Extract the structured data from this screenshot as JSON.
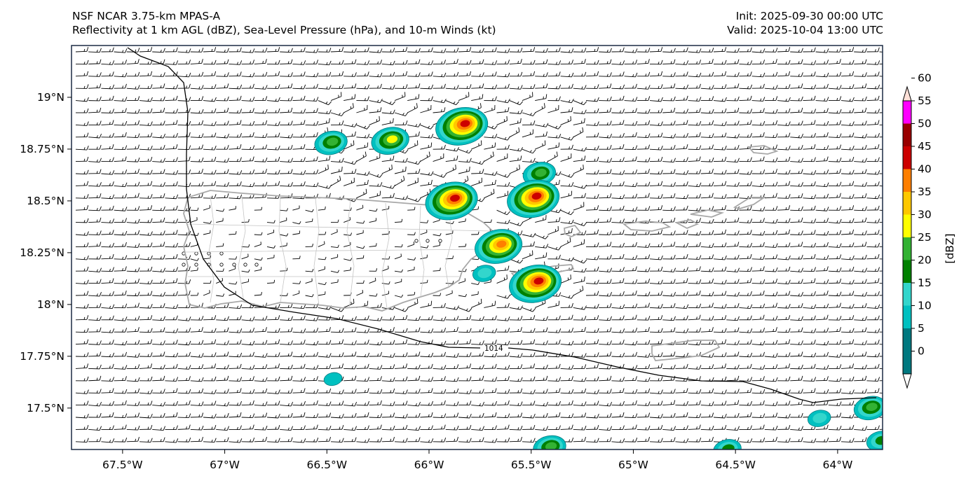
{
  "header": {
    "title_left_line1": "NSF NCAR 3.75-km MPAS-A",
    "title_left_line2": "Reflectivity at 1 km AGL (dBZ), Sea-Level Pressure (hPa), and 10-m Winds (kt)",
    "title_right_line1": "Init: 2025-09-30 00:00 UTC",
    "title_right_line2": "Valid: 2025-10-04 13:00 UTC"
  },
  "map": {
    "lon_range": [
      -67.75,
      -63.78
    ],
    "lat_range": [
      17.3,
      19.25
    ],
    "x_ticks": [
      {
        "value": -67.5,
        "label": "67.5°W"
      },
      {
        "value": -67.0,
        "label": "67°W"
      },
      {
        "value": -66.5,
        "label": "66.5°W"
      },
      {
        "value": -66.0,
        "label": "66°W"
      },
      {
        "value": -65.5,
        "label": "65.5°W"
      },
      {
        "value": -65.0,
        "label": "65°W"
      },
      {
        "value": -64.5,
        "label": "64.5°W"
      },
      {
        "value": -64.0,
        "label": "64°W"
      }
    ],
    "y_ticks": [
      {
        "value": 19.0,
        "label": "19°N"
      },
      {
        "value": 18.75,
        "label": "18.75°N"
      },
      {
        "value": 18.5,
        "label": "18.5°N"
      },
      {
        "value": 18.25,
        "label": "18.25°N"
      },
      {
        "value": 18.0,
        "label": "18°N"
      },
      {
        "value": 17.75,
        "label": "17.75°N"
      },
      {
        "value": 17.5,
        "label": "17.5°N"
      }
    ],
    "isobar_label": "1014",
    "colors": {
      "land_outline": "#a8a8a8",
      "isobar": "#000000",
      "barb": "#000000",
      "frame": "#1b2a44"
    }
  },
  "colorbar": {
    "label": "[dBZ]",
    "levels": [
      {
        "value": 0,
        "color": "#ffffff"
      },
      {
        "value": 5,
        "color": "#00787f"
      },
      {
        "value": 10,
        "color": "#00c0c0"
      },
      {
        "value": 15,
        "color": "#33d6cc"
      },
      {
        "value": 20,
        "color": "#008000"
      },
      {
        "value": 25,
        "color": "#33b233"
      },
      {
        "value": 30,
        "color": "#ffff00"
      },
      {
        "value": 35,
        "color": "#ffc800"
      },
      {
        "value": 40,
        "color": "#ff7f00"
      },
      {
        "value": 45,
        "color": "#cc0000"
      },
      {
        "value": 50,
        "color": "#990000"
      },
      {
        "value": 55,
        "color": "#ff00ff"
      },
      {
        "value": 60,
        "color": "#ffe0d8"
      }
    ],
    "tick_labels": [
      "0",
      "5",
      "10",
      "15",
      "20",
      "25",
      "30",
      "35",
      "40",
      "45",
      "50",
      "55",
      "60"
    ]
  },
  "storm_cells": [
    {
      "lon": -66.48,
      "lat": 18.78,
      "peak_dbz": 25
    },
    {
      "lon": -66.19,
      "lat": 18.79,
      "peak_dbz": 30
    },
    {
      "lon": -65.84,
      "lat": 18.86,
      "peak_dbz": 45
    },
    {
      "lon": -65.89,
      "lat": 18.5,
      "peak_dbz": 45
    },
    {
      "lon": -65.46,
      "lat": 18.63,
      "peak_dbz": 25
    },
    {
      "lon": -65.49,
      "lat": 18.51,
      "peak_dbz": 45
    },
    {
      "lon": -65.66,
      "lat": 18.28,
      "peak_dbz": 40
    },
    {
      "lon": -65.48,
      "lat": 18.1,
      "peak_dbz": 45
    },
    {
      "lon": -65.73,
      "lat": 18.15,
      "peak_dbz": 15
    },
    {
      "lon": -66.47,
      "lat": 17.64,
      "peak_dbz": 10
    },
    {
      "lon": -65.41,
      "lat": 17.31,
      "peak_dbz": 25
    },
    {
      "lon": -64.54,
      "lat": 17.3,
      "peak_dbz": 20
    },
    {
      "lon": -64.09,
      "lat": 17.45,
      "peak_dbz": 15
    },
    {
      "lon": -63.84,
      "lat": 17.5,
      "peak_dbz": 25
    },
    {
      "lon": -63.79,
      "lat": 17.34,
      "peak_dbz": 20
    }
  ]
}
